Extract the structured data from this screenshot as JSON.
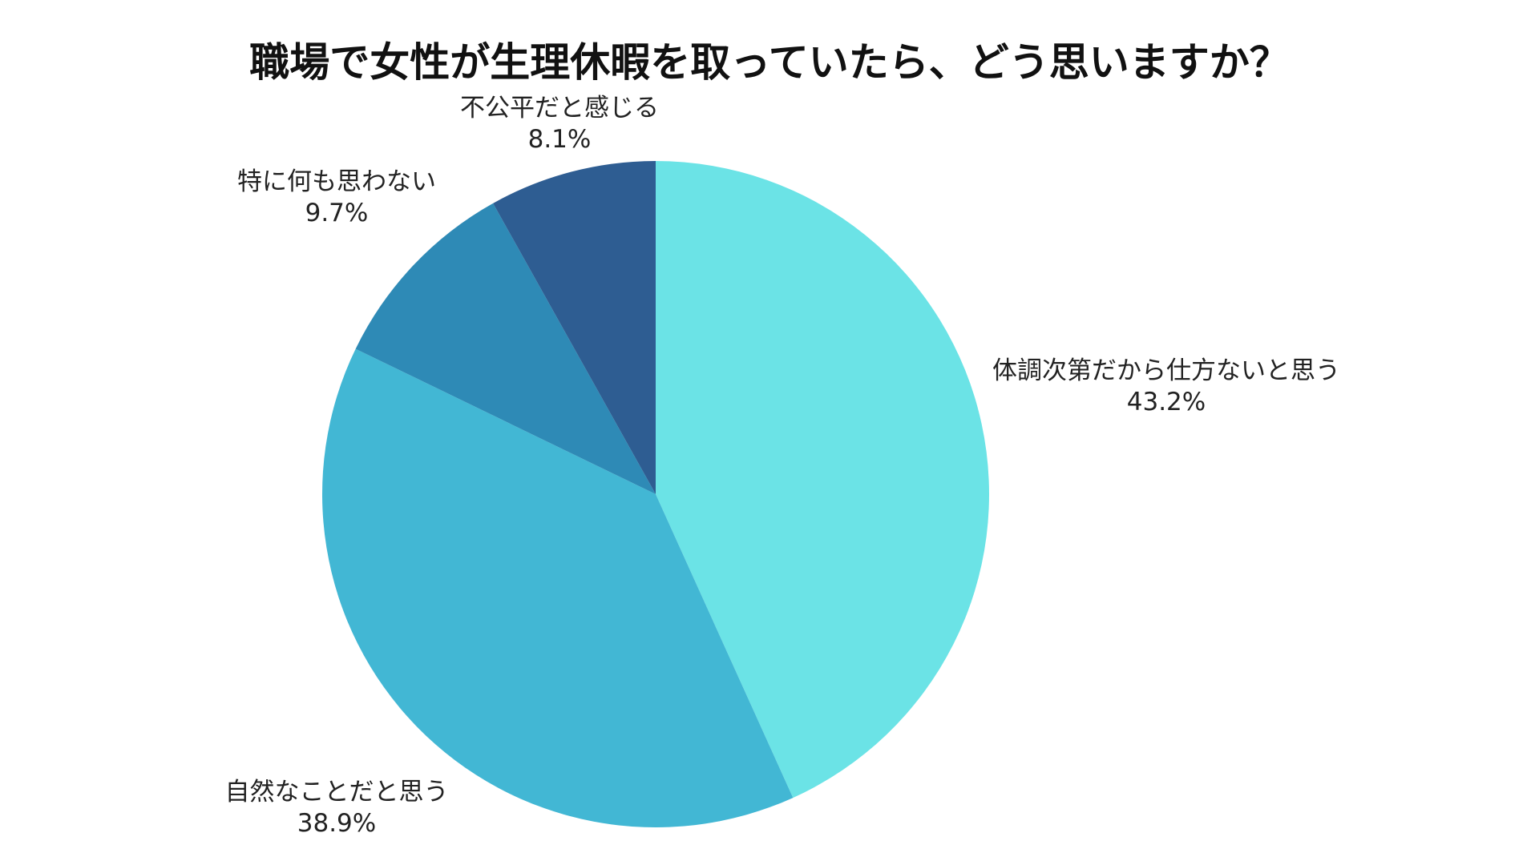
{
  "chart_data": {
    "type": "pie",
    "title": "職場で女性が生理休暇を取っていたら、どう思いますか？",
    "start_angle_deg": 0,
    "direction": "clockwise",
    "slices": [
      {
        "label": "体調次第だから仕方ないと思う",
        "value": 43.2,
        "value_label": "43.2%",
        "color": "#6BE3E6"
      },
      {
        "label": "自然なことだと思う",
        "value": 38.9,
        "value_label": "38.9%",
        "color": "#42B7D4"
      },
      {
        "label": "特に何も思わない",
        "value": 9.7,
        "value_label": "9.7%",
        "color": "#2E8AB6"
      },
      {
        "label": "不公平だと感じる",
        "value": 8.1,
        "value_label": "8.1%",
        "color": "#2E5D92"
      }
    ]
  }
}
